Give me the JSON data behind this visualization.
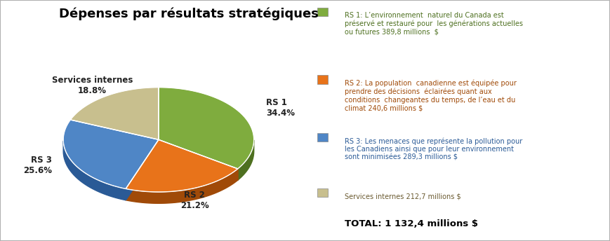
{
  "title": "Dépenses par résultats stratégiques",
  "slices": [
    34.4,
    21.2,
    25.6,
    18.8
  ],
  "slice_labels": [
    "RS 1\n34.4%",
    "RS 2\n21.2%",
    "RS 3\n25.6%",
    "Services internes\n18.8%"
  ],
  "colors_top": [
    "#7fac3e",
    "#e8731a",
    "#4f86c6",
    "#c8bf8e"
  ],
  "colors_side": [
    "#4e7020",
    "#a04a08",
    "#2a5a96",
    "#8a7a50"
  ],
  "colors_dark": [
    "#3a5518",
    "#783808",
    "#1a3a76",
    "#6a5a30"
  ],
  "startangle": 90,
  "depth": 0.12,
  "legend_entries": [
    "RS 1: L’environnement  naturel du Canada est\npréservé et restauré pour  les générations actuelles\nou futures 389,8 millions  $",
    "RS 2: La population  canadienne est équipée pour\nprendre des décisions  éclairées quant aux\nconditions  changeantes du temps, de l’eau et du\nclimat 240,6 millions $",
    "RS 3: Les menaces que représente la pollution pour\nles Canadiens ainsi que pour leur environnement\nsont minimisées 289,3 millions $",
    "Services internes 212,7 millions $"
  ],
  "legend_colors": [
    "#7fac3e",
    "#e8731a",
    "#4f86c6",
    "#c8bf8e"
  ],
  "legend_text_colors": [
    "#4e7020",
    "#a04a08",
    "#2a5a96",
    "#6a5a30"
  ],
  "total_text": "TOTAL: 1 132,4 millions $",
  "background_color": "#ffffff",
  "border_color": "#b0b0b0"
}
